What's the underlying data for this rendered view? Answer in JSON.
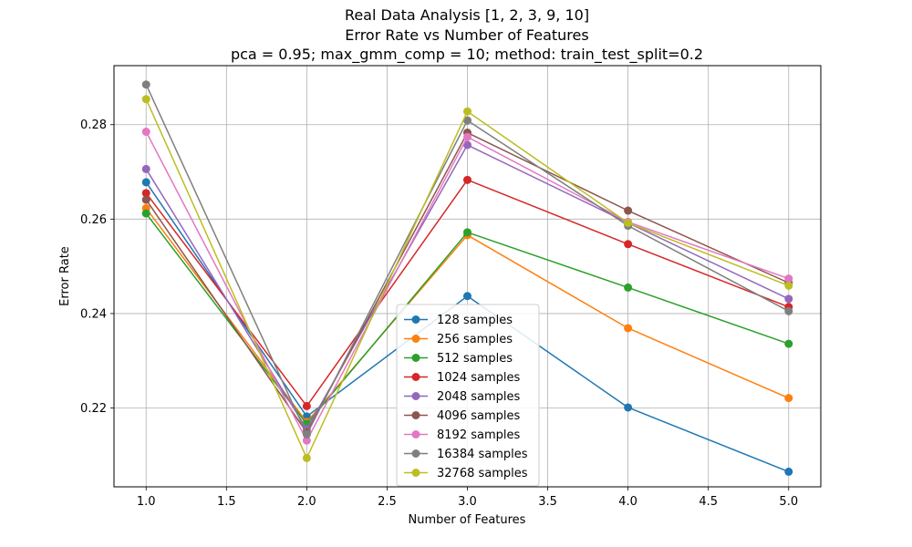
{
  "chart_data": {
    "type": "line",
    "title_lines": [
      "Real Data Analysis [1, 2, 3, 9, 10]",
      "Error Rate vs Number of Features",
      "pca = 0.95; max_gmm_comp = 10; method: train_test_split=0.2"
    ],
    "xlabel": "Number of Features",
    "ylabel": "Error Rate",
    "x": [
      1.0,
      2.0,
      3.0,
      4.0,
      5.0
    ],
    "xlim": [
      0.8,
      5.2
    ],
    "ylim": [
      0.2033,
      0.2925
    ],
    "xticks": [
      1.0,
      1.5,
      2.0,
      2.5,
      3.0,
      3.5,
      4.0,
      4.5,
      5.0
    ],
    "xtick_labels": [
      "1.0",
      "1.5",
      "2.0",
      "2.5",
      "3.0",
      "3.5",
      "4.0",
      "4.5",
      "5.0"
    ],
    "yticks": [
      0.22,
      0.24,
      0.26,
      0.28
    ],
    "ytick_labels": [
      "0.22",
      "0.24",
      "0.26",
      "0.28"
    ],
    "grid": true,
    "legend_position": "lower-center",
    "series": [
      {
        "name": "128 samples",
        "color": "#1f77b4",
        "values": [
          0.2678,
          0.2182,
          0.2437,
          0.2201,
          0.2065
        ]
      },
      {
        "name": "256 samples",
        "color": "#ff7f0e",
        "values": [
          0.2623,
          0.217,
          0.2566,
          0.2369,
          0.2221
        ]
      },
      {
        "name": "512 samples",
        "color": "#2ca02c",
        "values": [
          0.2612,
          0.2166,
          0.2572,
          0.2455,
          0.2336
        ]
      },
      {
        "name": "1024 samples",
        "color": "#d62728",
        "values": [
          0.2655,
          0.2204,
          0.2683,
          0.2547,
          0.2414
        ]
      },
      {
        "name": "2048 samples",
        "color": "#9467bd",
        "values": [
          0.2706,
          0.2155,
          0.2757,
          0.2592,
          0.2431
        ]
      },
      {
        "name": "4096 samples",
        "color": "#8c564b",
        "values": [
          0.2641,
          0.2148,
          0.2783,
          0.2618,
          0.2465
        ]
      },
      {
        "name": "8192 samples",
        "color": "#e377c2",
        "values": [
          0.2785,
          0.2131,
          0.2774,
          0.2594,
          0.2474
        ]
      },
      {
        "name": "16384 samples",
        "color": "#7f7f7f",
        "values": [
          0.2885,
          0.2144,
          0.2809,
          0.2586,
          0.2405
        ]
      },
      {
        "name": "32768 samples",
        "color": "#bcbd22",
        "values": [
          0.2854,
          0.2094,
          0.2828,
          0.2592,
          0.2459
        ]
      }
    ]
  }
}
